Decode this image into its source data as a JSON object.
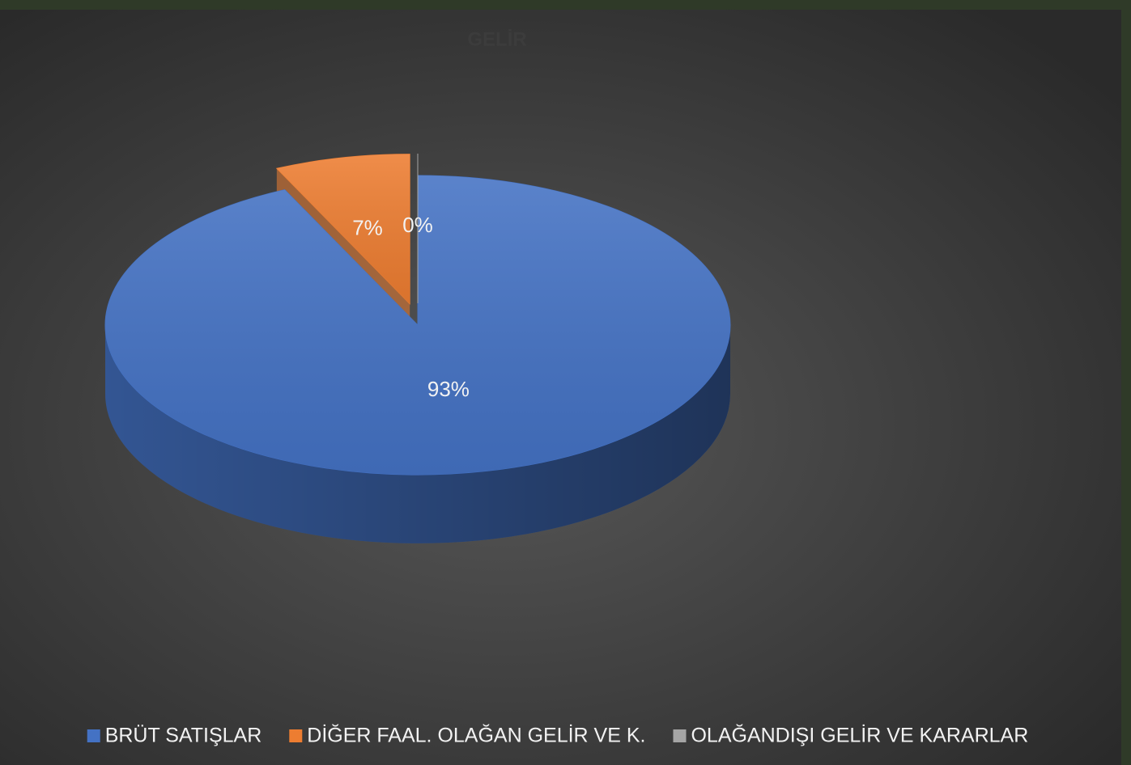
{
  "chart_data": {
    "type": "pie",
    "title": "GELİR",
    "categories": [
      "BRÜT SATIŞLAR",
      "DİĞER FAAL. OLAĞAN GELİR VE K.",
      "OLAĞANDIŞI GELİR VE KARARLAR"
    ],
    "values": [
      93,
      7,
      0
    ],
    "value_labels": [
      "93%",
      "7%",
      "0%"
    ],
    "colors": [
      "#4472c4",
      "#ed7d31",
      "#a5a5a5"
    ],
    "legend": "bottom"
  }
}
